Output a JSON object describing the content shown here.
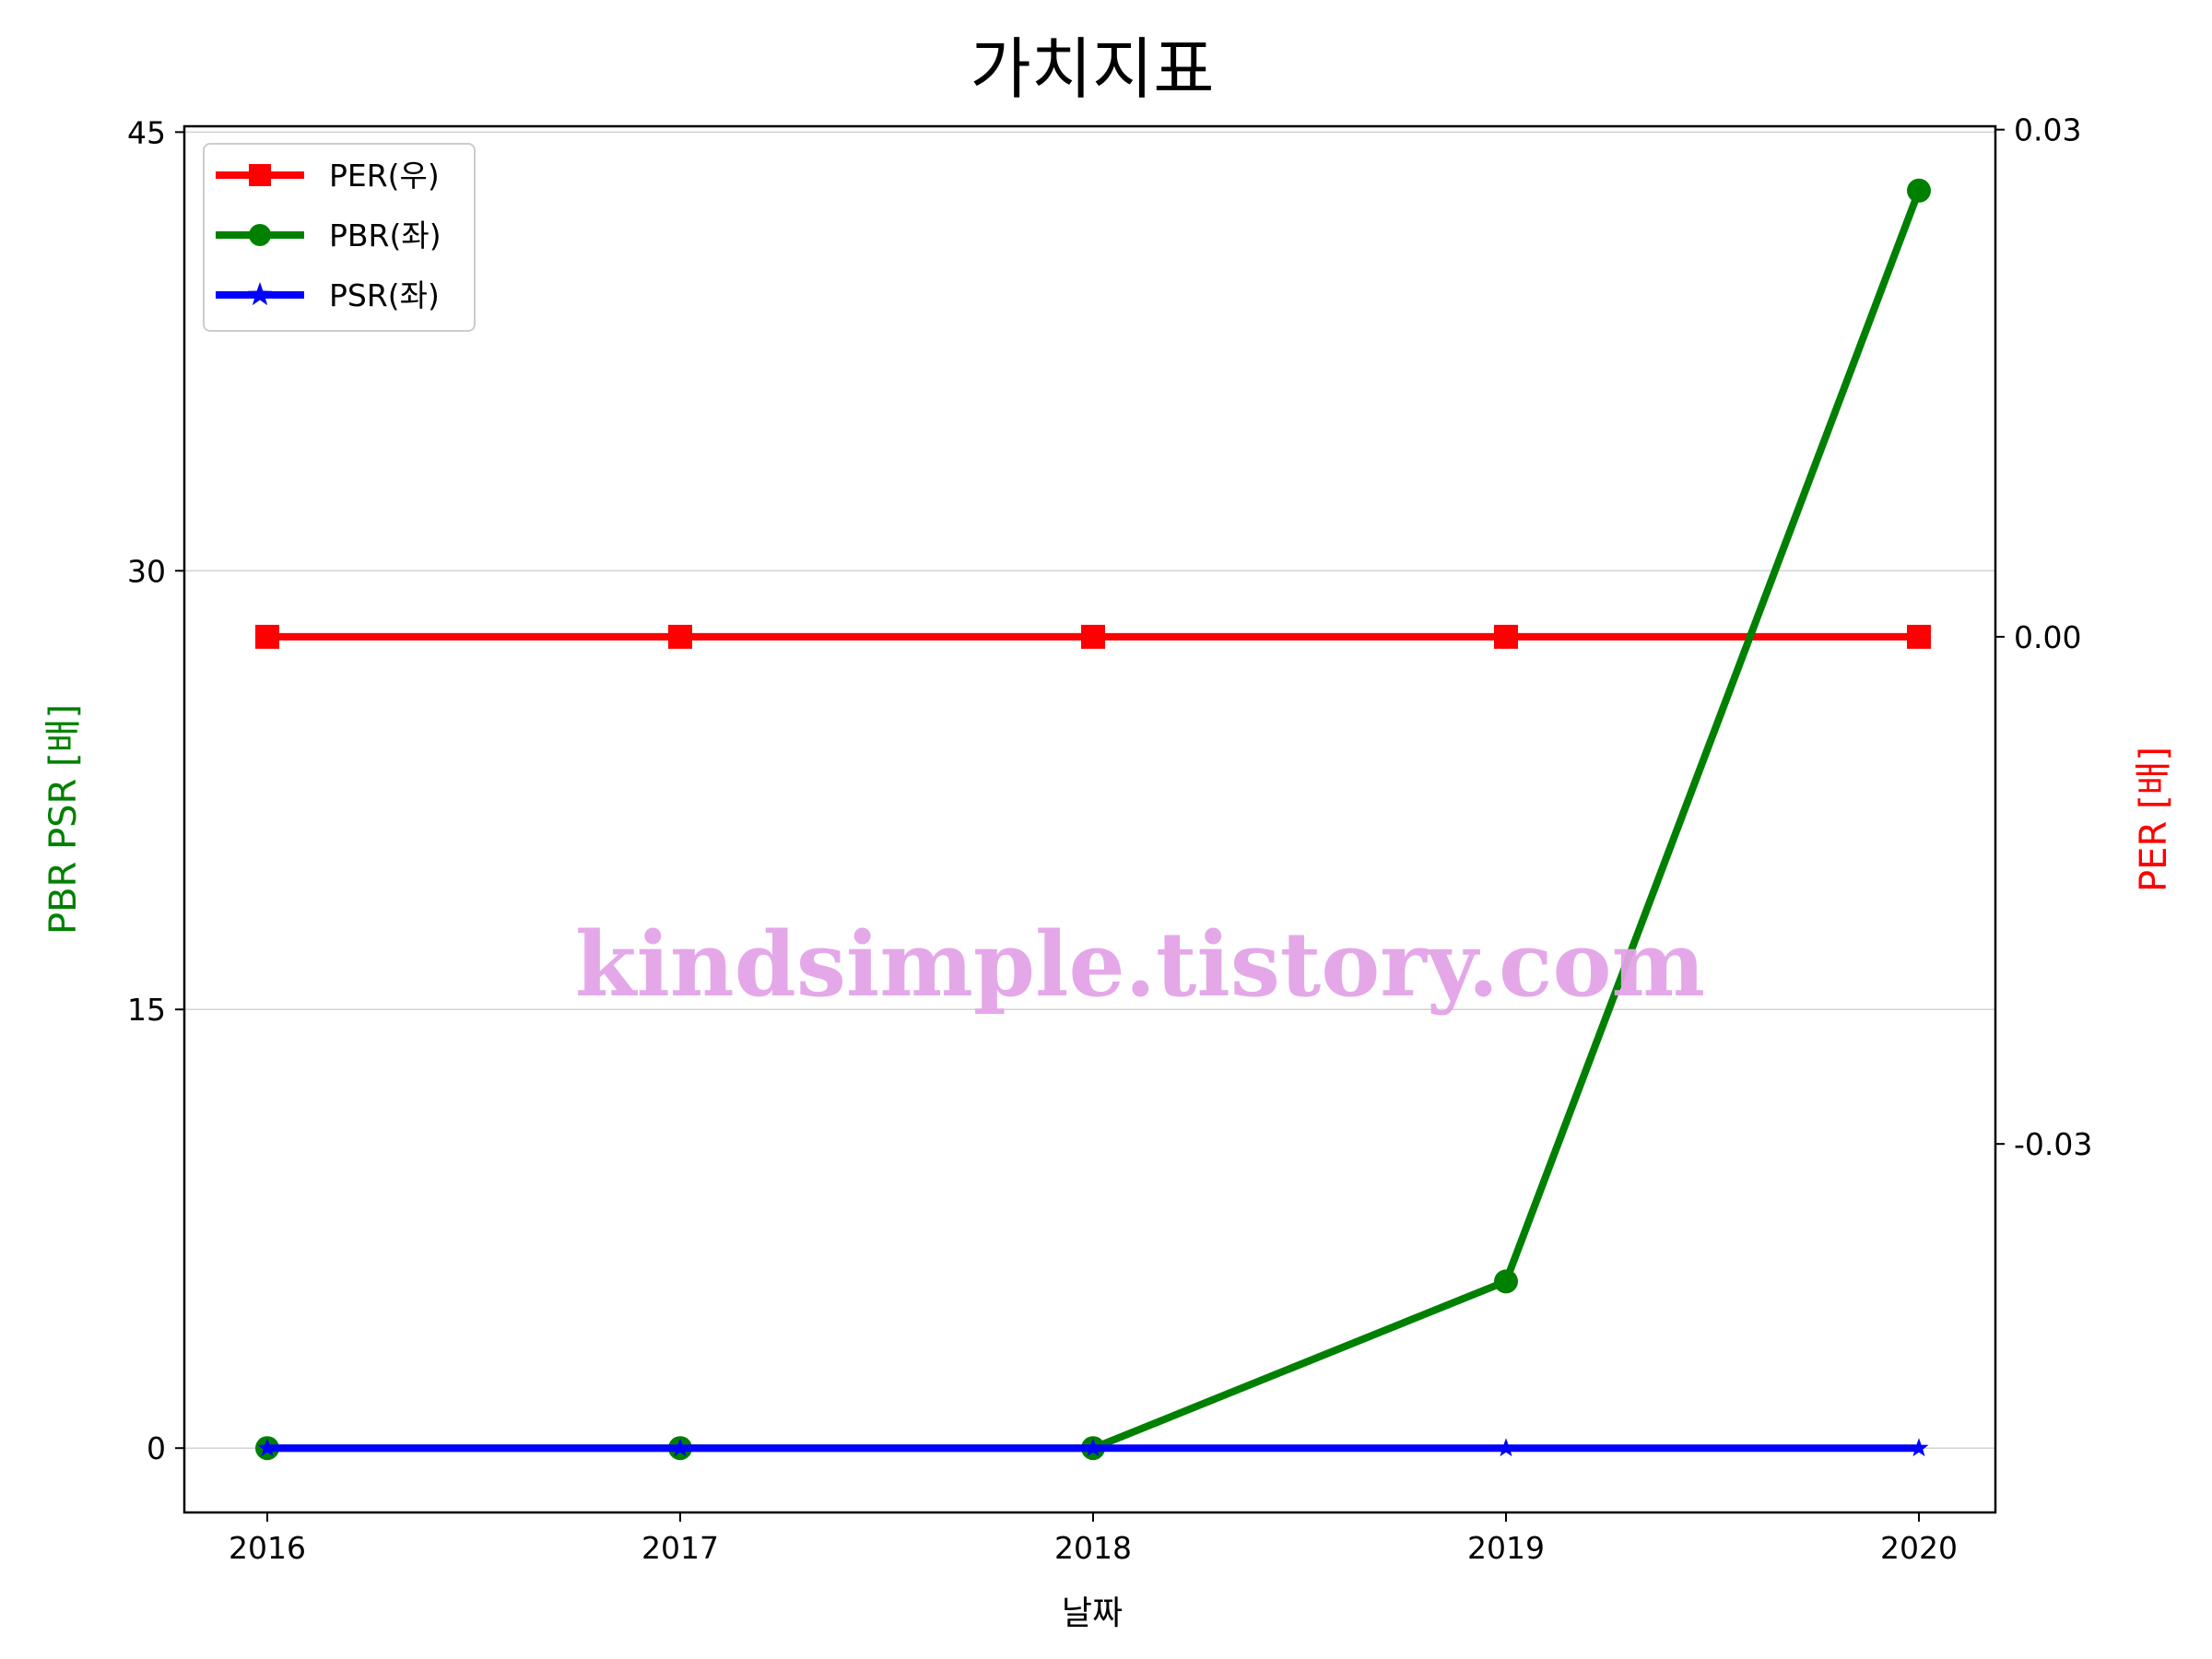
{
  "chart_data": {
    "type": "line",
    "title": "가치지표",
    "xlabel": "날짜",
    "ylabel_left": "PBR PSR [배]",
    "ylabel_right": "PER [배]",
    "x": [
      "2016",
      "2017",
      "2018",
      "2019",
      "2020"
    ],
    "ylim_left": [
      -2.2,
      45.2
    ],
    "yticks_left": [
      "0",
      "15",
      "30",
      "45"
    ],
    "ylim_right": [
      -0.0518,
      0.0302
    ],
    "yticks_right": [
      "-0.03",
      "0.00",
      "0.03"
    ],
    "grid": "horizontal (left axis)",
    "legend_position": "upper-left",
    "series": [
      {
        "name": "PER(우)",
        "axis": "right",
        "color": "#ff0000",
        "marker": "square",
        "values": [
          0,
          0,
          0,
          0,
          0
        ]
      },
      {
        "name": "PBR(좌)",
        "axis": "left",
        "color": "#008000",
        "marker": "circle",
        "values": [
          0,
          0,
          0,
          5.7,
          43.0
        ]
      },
      {
        "name": "PSR(좌)",
        "axis": "left",
        "color": "#0000ff",
        "marker": "star",
        "values": [
          0,
          0,
          0,
          0,
          0
        ]
      }
    ],
    "watermark": "kindsimple.tistory.com",
    "watermark_color": "#e3a3e8"
  }
}
